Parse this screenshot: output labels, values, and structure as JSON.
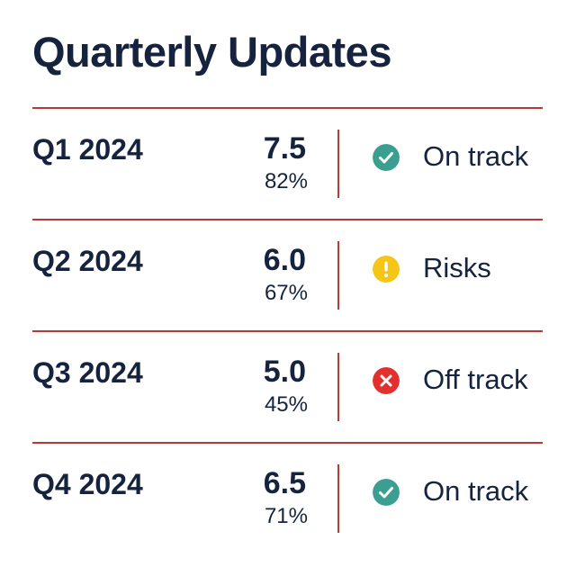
{
  "title": "Quarterly Updates",
  "colors": {
    "text": "#15233f",
    "rule": "#b53a3a",
    "on_track": "#3a9e90",
    "risks": "#f5c518",
    "off_track": "#e1302e"
  },
  "rows": [
    {
      "quarter": "Q1 2024",
      "score": "7.5",
      "percent": "82%",
      "status": "On track",
      "icon": "check-circle-icon"
    },
    {
      "quarter": "Q2 2024",
      "score": "6.0",
      "percent": "67%",
      "status": "Risks",
      "icon": "warning-circle-icon"
    },
    {
      "quarter": "Q3 2024",
      "score": "5.0",
      "percent": "45%",
      "status": "Off track",
      "icon": "x-circle-icon"
    },
    {
      "quarter": "Q4 2024",
      "score": "6.5",
      "percent": "71%",
      "status": "On track",
      "icon": "check-circle-icon"
    }
  ]
}
